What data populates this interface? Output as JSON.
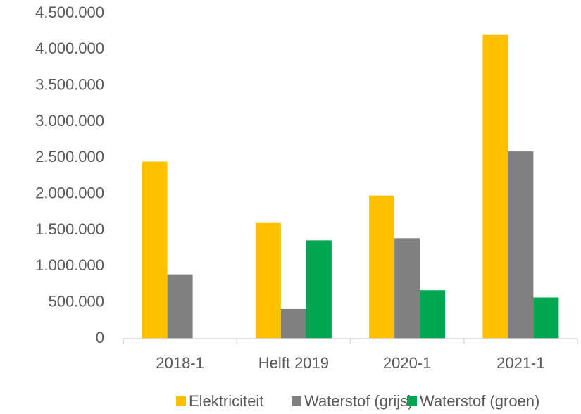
{
  "chart_data": {
    "type": "bar",
    "categories": [
      "2018-1",
      "Helft 2019",
      "2020-1",
      "2021-1"
    ],
    "series": [
      {
        "name": "Elektriciteit",
        "color": "#ffc000",
        "values": [
          2450000,
          1600000,
          1980000,
          4210000
        ]
      },
      {
        "name": "Waterstof (grijs)",
        "color": "#808080",
        "values": [
          890000,
          410000,
          1390000,
          2590000
        ]
      },
      {
        "name": "Waterstof (groen)",
        "color": "#00a650",
        "values": [
          0,
          1360000,
          670000,
          570000
        ]
      }
    ],
    "ylim": [
      0,
      4500000
    ],
    "yticks": [
      0,
      {
        "value": 500000,
        "label": "500.000"
      },
      {
        "value": 1000000,
        "label": "1.000.000"
      },
      {
        "value": 1500000,
        "label": "1.500.000"
      },
      {
        "value": 2000000,
        "label": "2.000.000"
      },
      {
        "value": 2500000,
        "label": "2.500.000"
      },
      {
        "value": 3000000,
        "label": "3.000.000"
      },
      {
        "value": 3500000,
        "label": "3.500.000"
      },
      {
        "value": 4000000,
        "label": "4.000.000"
      },
      {
        "value": 4500000,
        "label": "4.500.000"
      }
    ],
    "grid": false
  }
}
